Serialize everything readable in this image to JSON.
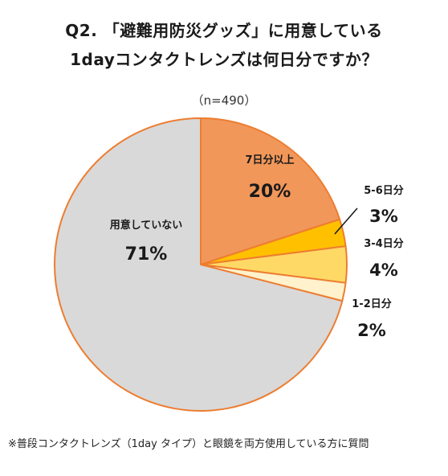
{
  "title_line1": "Q2. 「避難用防災グッズ」に用意している",
  "title_line2": "1dayコンタクトレンズは何日分ですか？",
  "sample_size": "（n=490）",
  "footnote": "※普段コンタクトレンズ（1day タイプ）と眼鏡を両方使用している方に質問",
  "colors": {
    "seven_days": "#F1975A",
    "five_six": "#FFC000",
    "three_four": "#FFD966",
    "one_two": "#FFF2CC",
    "not_prepared": "#D9D9D9",
    "outline": "#ED7D31"
  },
  "chart_data": {
    "type": "pie",
    "title": "Q2. 「避難用防災グッズ」に用意している 1dayコンタクトレンズは何日分ですか？",
    "n": "（n=490）",
    "slices": [
      {
        "label": "7日分以上",
        "value": 20,
        "value_label": "20%",
        "color": "#F1975A"
      },
      {
        "label": "5-6日分",
        "value": 3,
        "value_label": "3%",
        "color": "#FFC000"
      },
      {
        "label": "3-4日分",
        "value": 4,
        "value_label": "4%",
        "color": "#FFD966"
      },
      {
        "label": "1-2日分",
        "value": 2,
        "value_label": "2%",
        "color": "#FFF2CC"
      },
      {
        "label": "用意していない",
        "value": 71,
        "value_label": "71%",
        "color": "#D9D9D9"
      }
    ],
    "start": "12 o'clock",
    "direction": "clockwise",
    "legend": "none"
  }
}
